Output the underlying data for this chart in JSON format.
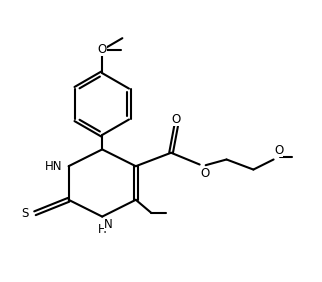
{
  "bg_color": "#ffffff",
  "line_color": "#000000",
  "line_width": 1.5,
  "font_size": 8.5,
  "figsize": [
    3.22,
    2.82
  ],
  "dpi": 100,
  "xlim": [
    0.0,
    9.5
  ],
  "ylim": [
    1.5,
    9.0
  ]
}
